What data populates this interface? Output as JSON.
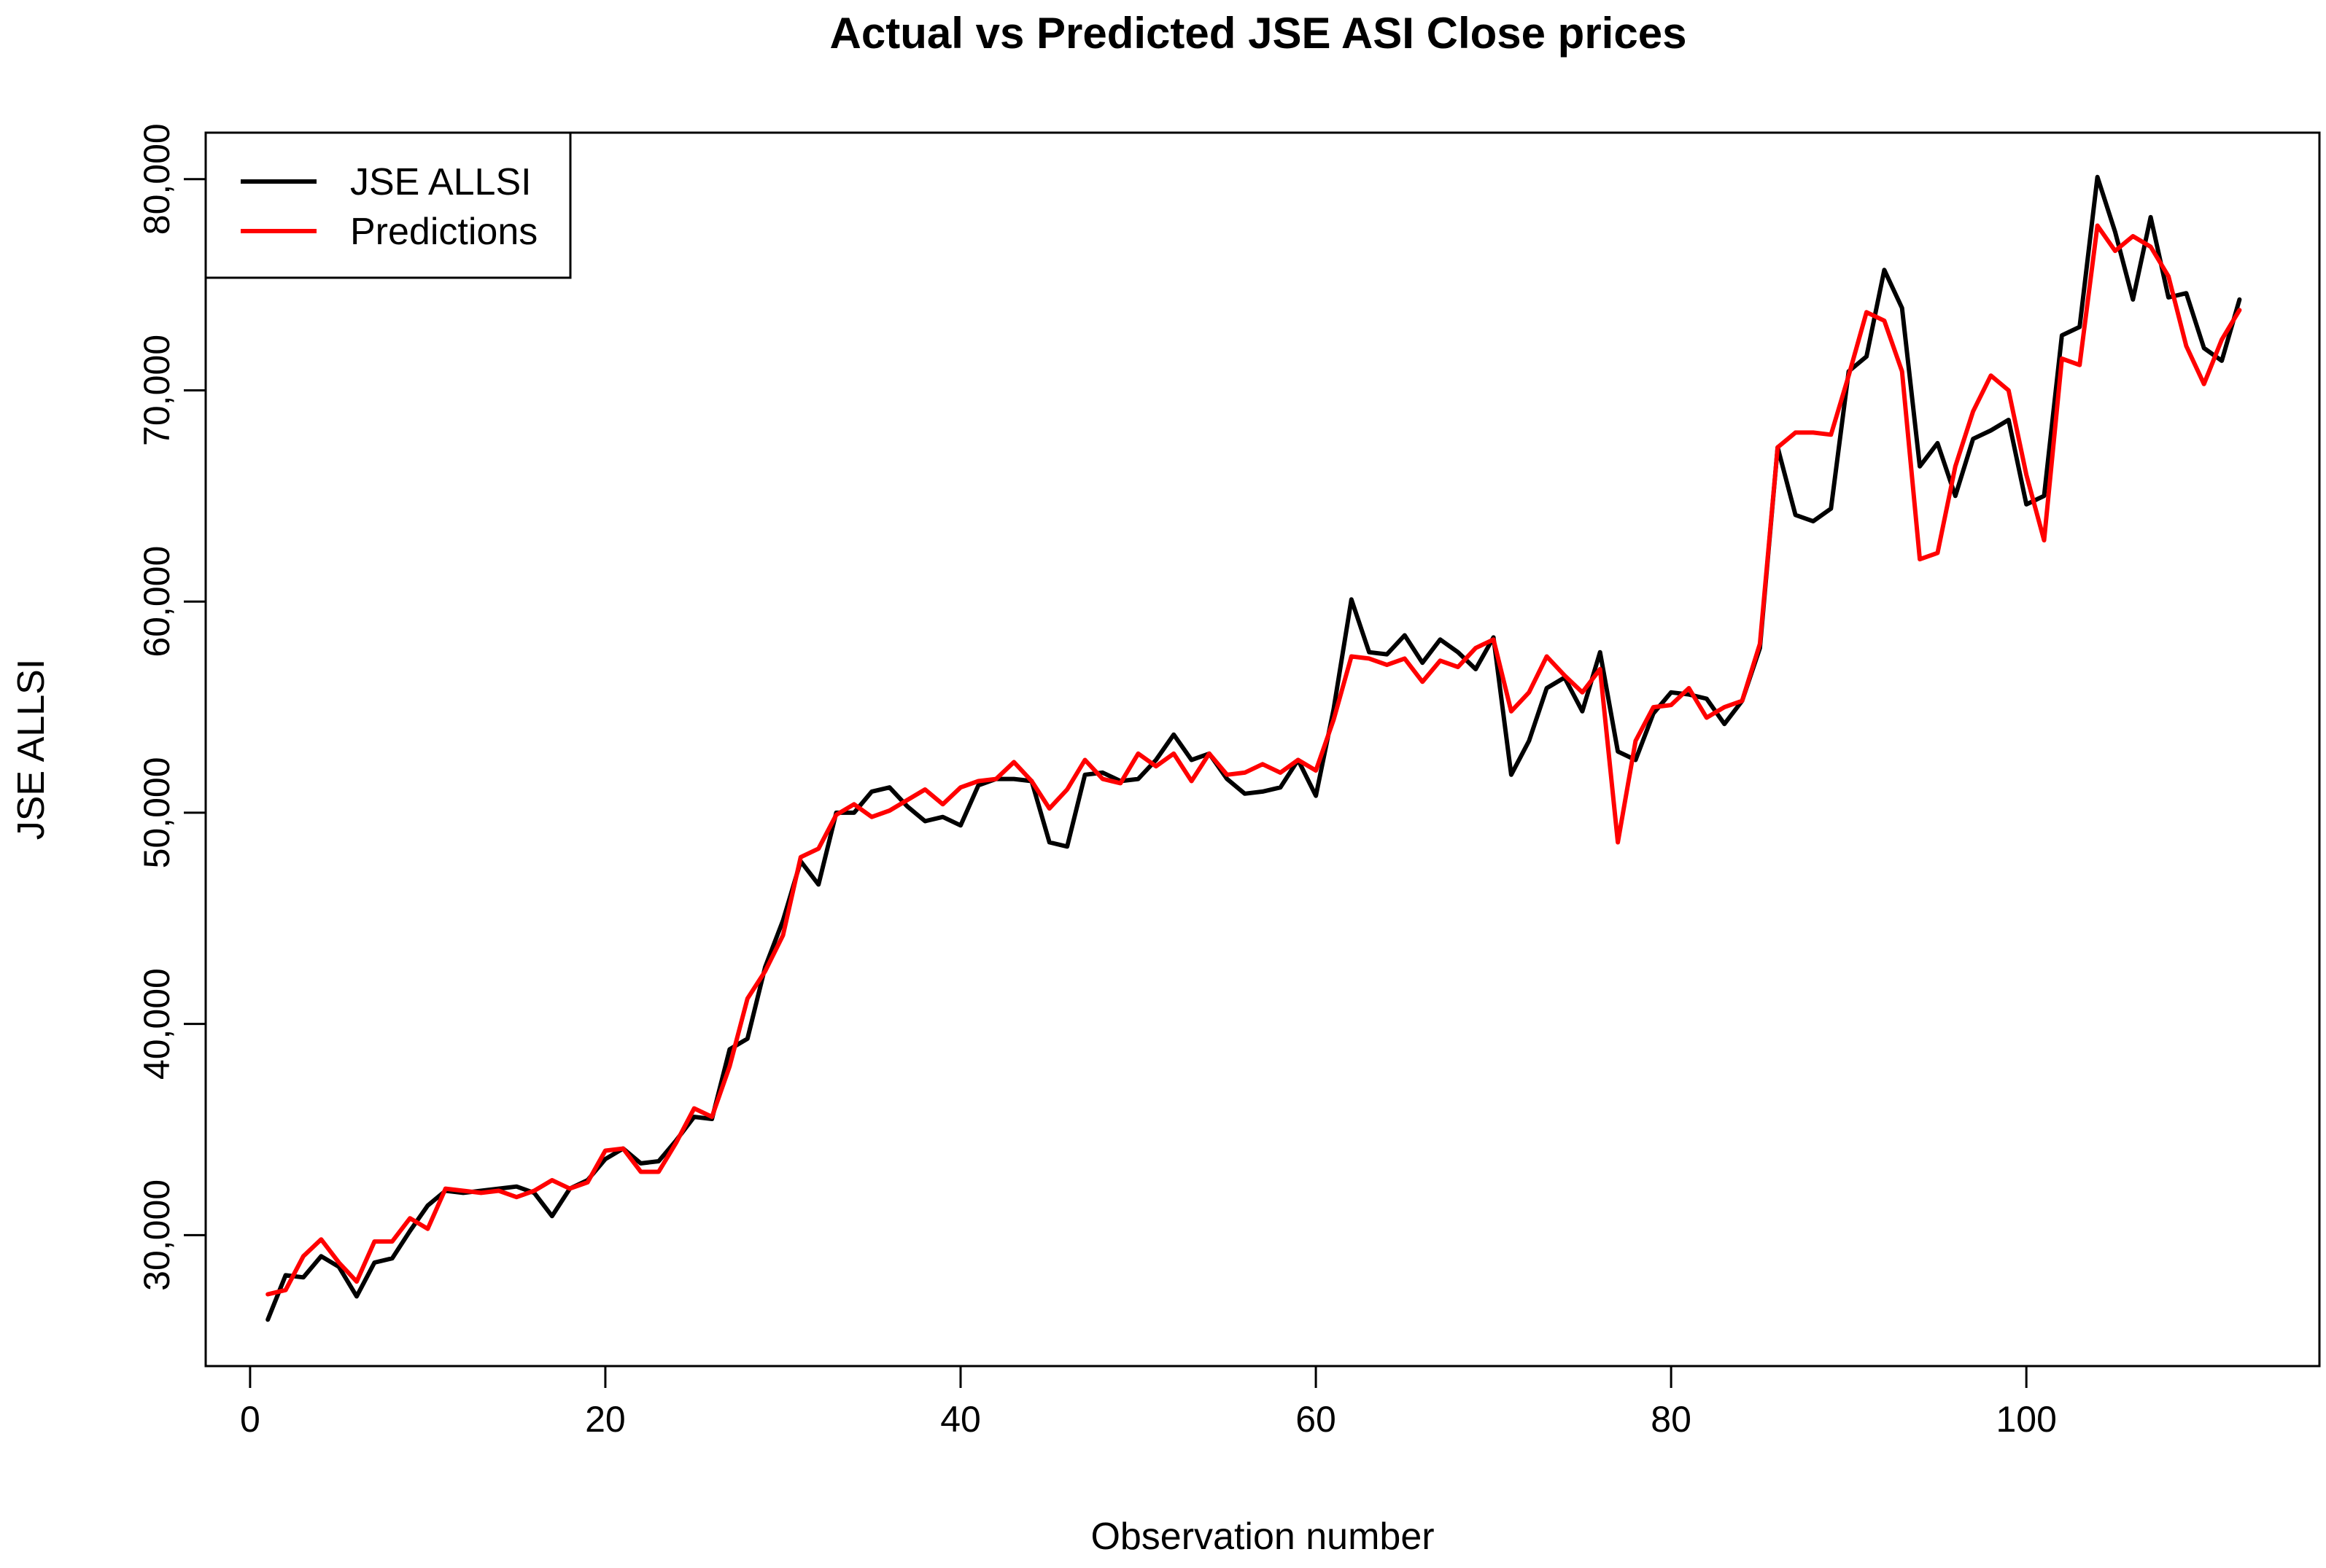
{
  "chart_data": {
    "type": "line",
    "title": "Actual vs Predicted JSE ASI Close prices",
    "xlabel": "Observation number",
    "ylabel": "JSE ALLSI",
    "xlim": [
      -2.5,
      116.5
    ],
    "ylim": [
      23800,
      82200
    ],
    "x_ticks": [
      0,
      20,
      40,
      60,
      80,
      100
    ],
    "x_tick_labels": [
      "0",
      "20",
      "40",
      "60",
      "80",
      "100"
    ],
    "y_ticks": [
      30000,
      40000,
      50000,
      60000,
      70000,
      80000
    ],
    "y_tick_labels": [
      "30,000",
      "40,000",
      "50,000",
      "60,000",
      "70,000",
      "80,000"
    ],
    "grid": false,
    "legend_position": "top-left",
    "x": [
      1,
      2,
      3,
      4,
      5,
      6,
      7,
      8,
      9,
      10,
      11,
      12,
      13,
      14,
      15,
      16,
      17,
      18,
      19,
      20,
      21,
      22,
      23,
      24,
      25,
      26,
      27,
      28,
      29,
      30,
      31,
      32,
      33,
      34,
      35,
      36,
      37,
      38,
      39,
      40,
      41,
      42,
      43,
      44,
      45,
      46,
      47,
      48,
      49,
      50,
      51,
      52,
      53,
      54,
      55,
      56,
      57,
      58,
      59,
      60,
      61,
      62,
      63,
      64,
      65,
      66,
      67,
      68,
      69,
      70,
      71,
      72,
      73,
      74,
      75,
      76,
      77,
      78,
      79,
      80,
      81,
      82,
      83,
      84,
      85,
      86,
      87,
      88,
      89,
      90,
      91,
      92,
      93,
      94,
      95,
      96,
      97,
      98,
      99,
      100,
      101,
      102,
      103,
      104,
      105,
      106,
      107,
      108,
      109,
      110,
      111,
      112
    ],
    "series": [
      {
        "name": "JSE ALLSI",
        "color": "#000000",
        "values": [
          26000,
          28100,
          28000,
          29000,
          28500,
          27100,
          28700,
          28900,
          30200,
          31400,
          32100,
          32000,
          32100,
          32200,
          32300,
          32000,
          30900,
          32200,
          32600,
          33600,
          34100,
          33400,
          33500,
          34500,
          35600,
          35500,
          38800,
          39300,
          42700,
          44900,
          47700,
          46600,
          50000,
          50000,
          51000,
          51200,
          50300,
          49600,
          49800,
          49400,
          51300,
          51600,
          51600,
          51500,
          48600,
          48400,
          51800,
          51900,
          51500,
          51600,
          52500,
          53700,
          52500,
          52800,
          51600,
          50900,
          51000,
          51200,
          52500,
          50800,
          54900,
          60100,
          57600,
          57500,
          58400,
          57100,
          58200,
          57600,
          56800,
          58300,
          51800,
          53400,
          55900,
          56400,
          54800,
          57600,
          52900,
          52500,
          54700,
          55700,
          55600,
          55400,
          54200,
          55300,
          57800,
          67300,
          64100,
          63800,
          64400,
          70900,
          71600,
          75700,
          73900,
          66400,
          67500,
          65000,
          67700,
          68100,
          68600,
          64600,
          65000,
          72600,
          73000,
          80100,
          77500,
          74300,
          78200,
          74400,
          74600,
          72000,
          71400,
          74300
        ]
      },
      {
        "name": "Predictions",
        "color": "#ff0000",
        "values": [
          27200,
          27400,
          29000,
          29800,
          28700,
          27800,
          29700,
          29700,
          30800,
          30300,
          32200,
          32100,
          32000,
          32100,
          31800,
          32100,
          32600,
          32200,
          32500,
          34000,
          34100,
          33000,
          33000,
          34400,
          36000,
          35600,
          38000,
          41200,
          42500,
          44200,
          47900,
          48300,
          49900,
          50400,
          49800,
          50100,
          50600,
          51100,
          50400,
          51200,
          51500,
          51600,
          52400,
          51500,
          50200,
          51100,
          52500,
          51600,
          51400,
          52800,
          52200,
          52800,
          51500,
          52800,
          51800,
          51900,
          52300,
          51900,
          52500,
          52000,
          54400,
          57400,
          57300,
          57000,
          57300,
          56200,
          57200,
          56900,
          57800,
          58200,
          54800,
          55700,
          57400,
          56500,
          55700,
          56800,
          48600,
          53400,
          55000,
          55100,
          55900,
          54500,
          55000,
          55300,
          58000,
          67300,
          68000,
          68000,
          67900,
          70700,
          73700,
          73300,
          70900,
          62000,
          62300,
          66400,
          69000,
          70700,
          70000,
          66000,
          62900,
          71500,
          71200,
          77800,
          76600,
          77300,
          76800,
          75400,
          72100,
          70300,
          72400,
          73800
        ]
      }
    ]
  }
}
